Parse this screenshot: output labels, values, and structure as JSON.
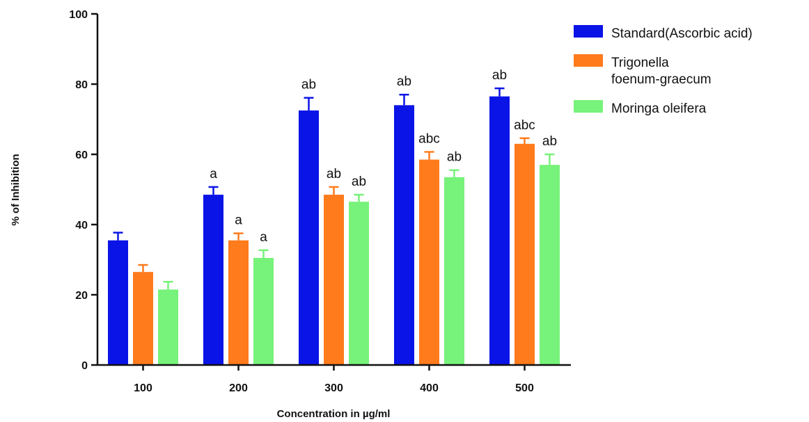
{
  "chart_data": {
    "type": "bar",
    "title": "",
    "xlabel": "Concentration in µg/ml",
    "ylabel": "% of Inhibition",
    "ylim": [
      0,
      100
    ],
    "yticks": [
      0,
      20,
      40,
      60,
      80,
      100
    ],
    "categories": [
      "100",
      "200",
      "300",
      "400",
      "500"
    ],
    "legend_position": "top-right",
    "grid": false,
    "series": [
      {
        "name": "Standard(Ascorbic acid)",
        "legend_lines": [
          "Standard(Ascorbic acid)"
        ],
        "color": "#0a14e6",
        "values": [
          35.5,
          48.5,
          72.5,
          74.0,
          76.5
        ],
        "errors": [
          2.2,
          2.2,
          3.6,
          3.0,
          2.3
        ],
        "annotations": [
          "",
          "a",
          "ab",
          "ab",
          "ab"
        ]
      },
      {
        "name": "Trigonella foenum-graecum",
        "legend_lines": [
          "Trigonella",
          "foenum-graecum"
        ],
        "color": "#ff7b1c",
        "values": [
          26.5,
          35.5,
          48.5,
          58.5,
          63.0
        ],
        "errors": [
          2.0,
          2.0,
          2.2,
          2.2,
          1.6
        ],
        "annotations": [
          "",
          "a",
          "ab",
          "abc",
          "abc"
        ]
      },
      {
        "name": "Moringa oleifera",
        "legend_lines": [
          "Moringa oleifera"
        ],
        "color": "#77f27a",
        "values": [
          21.5,
          30.5,
          46.5,
          53.5,
          57.0
        ],
        "errors": [
          2.2,
          2.2,
          2.0,
          2.0,
          3.0
        ],
        "annotations": [
          "",
          "a",
          "ab",
          "ab",
          "ab"
        ]
      }
    ]
  }
}
